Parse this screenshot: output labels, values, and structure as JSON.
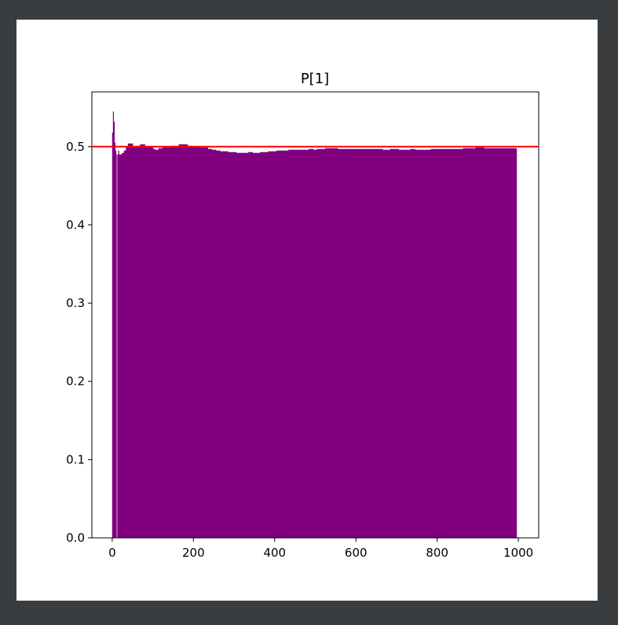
{
  "chart_data": {
    "type": "bar",
    "title": "P[1]",
    "xlabel": "",
    "ylabel": "",
    "xlim": [
      -50,
      1050
    ],
    "ylim": [
      0,
      0.57
    ],
    "xticks": [
      0,
      200,
      400,
      600,
      800,
      1000
    ],
    "yticks": [
      0.0,
      0.1,
      0.2,
      0.3,
      0.4,
      0.5
    ],
    "xtick_labels": [
      "0",
      "200",
      "400",
      "600",
      "800",
      "1000"
    ],
    "ytick_labels": [
      "0.0",
      "0.1",
      "0.2",
      "0.3",
      "0.4",
      "0.5"
    ],
    "grid": false,
    "bar_color": "#800080",
    "reference_line": {
      "y": 0.5,
      "color": "#ff0000"
    },
    "series": [
      {
        "x": [
          1,
          3,
          5,
          7,
          9,
          12,
          16,
          20,
          25,
          30,
          35,
          40,
          45,
          50,
          55,
          60,
          65,
          70,
          75,
          80,
          85,
          90,
          95,
          100,
          110,
          120,
          130,
          140,
          150,
          160,
          170,
          180,
          190,
          200,
          210,
          220,
          230,
          240,
          250,
          260,
          270,
          280,
          290,
          300,
          310,
          320,
          330,
          340,
          350,
          360,
          370,
          380,
          390,
          400,
          410,
          420,
          430,
          440,
          450,
          460,
          470,
          480,
          490,
          500,
          510,
          520,
          530,
          540,
          550,
          560,
          570,
          580,
          590,
          600,
          610,
          620,
          630,
          640,
          650,
          660,
          670,
          680,
          690,
          700,
          710,
          720,
          730,
          740,
          750,
          760,
          770,
          780,
          790,
          800,
          810,
          820,
          830,
          840,
          850,
          860,
          870,
          880,
          890,
          900,
          910,
          920,
          930,
          940,
          950,
          960,
          970,
          980,
          990
        ],
        "values": [
          0.518,
          0.545,
          0.532,
          0.505,
          0.495,
          0.49,
          0.495,
          0.49,
          0.485,
          0.492,
          0.495,
          0.5,
          0.504,
          0.498,
          0.5,
          0.497,
          0.501,
          0.5,
          0.503,
          0.498,
          0.5,
          0.499,
          0.5,
          0.497,
          0.496,
          0.498,
          0.5,
          0.499,
          0.501,
          0.5,
          0.503,
          0.503,
          0.501,
          0.5,
          0.5,
          0.499,
          0.499,
          0.497,
          0.496,
          0.495,
          0.494,
          0.494,
          0.493,
          0.493,
          0.492,
          0.492,
          0.492,
          0.493,
          0.492,
          0.492,
          0.493,
          0.493,
          0.494,
          0.494,
          0.495,
          0.495,
          0.495,
          0.496,
          0.496,
          0.496,
          0.496,
          0.496,
          0.497,
          0.496,
          0.497,
          0.497,
          0.498,
          0.498,
          0.498,
          0.497,
          0.497,
          0.497,
          0.497,
          0.497,
          0.497,
          0.497,
          0.497,
          0.497,
          0.497,
          0.497,
          0.496,
          0.496,
          0.497,
          0.497,
          0.496,
          0.496,
          0.496,
          0.497,
          0.496,
          0.496,
          0.496,
          0.496,
          0.497,
          0.497,
          0.497,
          0.497,
          0.497,
          0.497,
          0.497,
          0.497,
          0.498,
          0.498,
          0.498,
          0.499,
          0.499,
          0.498,
          0.498,
          0.498,
          0.498,
          0.498,
          0.498,
          0.498,
          0.498
        ]
      }
    ]
  }
}
